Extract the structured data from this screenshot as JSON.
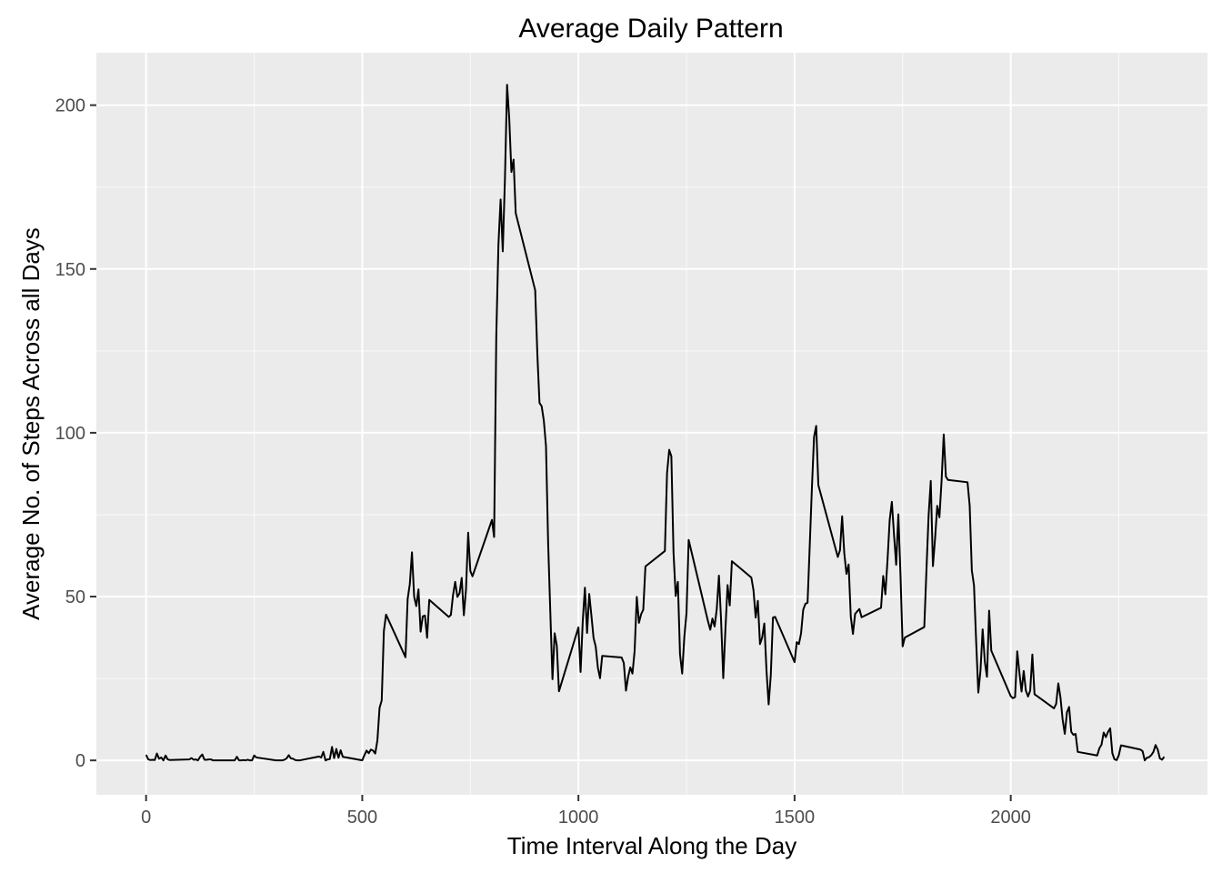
{
  "chart_data": {
    "type": "line",
    "title": "Average Daily Pattern",
    "xlabel": "Time Interval Along the Day",
    "ylabel": "Average No. of Steps Across all Days",
    "xlim": [
      -115,
      2455
    ],
    "ylim": [
      -10.5,
      216
    ],
    "x_ticks": [
      0,
      500,
      1000,
      1500,
      2000
    ],
    "y_ticks": [
      0,
      50,
      100,
      150,
      200
    ],
    "grid": true,
    "legend": "none",
    "colors": {
      "panel": "#ebebeb",
      "line": "#000000",
      "grid": "#ffffff",
      "tick_text": "#4d4d4d"
    },
    "points": [
      [
        0,
        1.7
      ],
      [
        5,
        0.3
      ],
      [
        10,
        0.1
      ],
      [
        15,
        0.2
      ],
      [
        20,
        0.1
      ],
      [
        25,
        2.1
      ],
      [
        30,
        0.5
      ],
      [
        35,
        0.9
      ],
      [
        40,
        0
      ],
      [
        45,
        1.5
      ],
      [
        50,
        0.3
      ],
      [
        55,
        0.1
      ],
      [
        100,
        0.3
      ],
      [
        105,
        0.7
      ],
      [
        110,
        0.2
      ],
      [
        115,
        0.3
      ],
      [
        120,
        0
      ],
      [
        125,
        1.1
      ],
      [
        130,
        1.8
      ],
      [
        135,
        0.2
      ],
      [
        140,
        0.2
      ],
      [
        145,
        0.3
      ],
      [
        150,
        0.3
      ],
      [
        155,
        0
      ],
      [
        200,
        0
      ],
      [
        205,
        0
      ],
      [
        210,
        1.1
      ],
      [
        215,
        0
      ],
      [
        220,
        0
      ],
      [
        225,
        0.1
      ],
      [
        230,
        0
      ],
      [
        235,
        0.2
      ],
      [
        240,
        0
      ],
      [
        245,
        0
      ],
      [
        250,
        1.5
      ],
      [
        255,
        0.9
      ],
      [
        300,
        0
      ],
      [
        305,
        0
      ],
      [
        310,
        0
      ],
      [
        315,
        0
      ],
      [
        320,
        0.2
      ],
      [
        325,
        0.6
      ],
      [
        330,
        1.6
      ],
      [
        335,
        0.6
      ],
      [
        340,
        0.5
      ],
      [
        345,
        0.1
      ],
      [
        350,
        0
      ],
      [
        355,
        0
      ],
      [
        400,
        1.2
      ],
      [
        405,
        0.9
      ],
      [
        410,
        2.6
      ],
      [
        415,
        0
      ],
      [
        420,
        0.3
      ],
      [
        425,
        0.4
      ],
      [
        430,
        4.1
      ],
      [
        435,
        0.7
      ],
      [
        440,
        3.5
      ],
      [
        445,
        0.8
      ],
      [
        450,
        3.1
      ],
      [
        455,
        1.1
      ],
      [
        500,
        0
      ],
      [
        505,
        1.6
      ],
      [
        510,
        3
      ],
      [
        515,
        2.2
      ],
      [
        520,
        3.3
      ],
      [
        525,
        3
      ],
      [
        530,
        2.1
      ],
      [
        535,
        6.1
      ],
      [
        540,
        16
      ],
      [
        545,
        18.3
      ],
      [
        550,
        39.5
      ],
      [
        555,
        44.5
      ],
      [
        600,
        31.5
      ],
      [
        605,
        49.3
      ],
      [
        610,
        53.8
      ],
      [
        615,
        63.5
      ],
      [
        620,
        50
      ],
      [
        625,
        47.1
      ],
      [
        630,
        52.2
      ],
      [
        635,
        39.3
      ],
      [
        640,
        44
      ],
      [
        645,
        44.2
      ],
      [
        650,
        37.4
      ],
      [
        655,
        49
      ],
      [
        700,
        43.8
      ],
      [
        705,
        44.4
      ],
      [
        710,
        50.5
      ],
      [
        715,
        54.5
      ],
      [
        720,
        49.9
      ],
      [
        725,
        51
      ],
      [
        730,
        55.7
      ],
      [
        735,
        44.3
      ],
      [
        740,
        52.3
      ],
      [
        745,
        69.5
      ],
      [
        750,
        57.8
      ],
      [
        755,
        56.2
      ],
      [
        800,
        73.4
      ],
      [
        805,
        68.2
      ],
      [
        810,
        129.4
      ],
      [
        815,
        157.5
      ],
      [
        820,
        171.2
      ],
      [
        825,
        155.4
      ],
      [
        830,
        177.3
      ],
      [
        835,
        206.2
      ],
      [
        840,
        195.9
      ],
      [
        845,
        179.6
      ],
      [
        850,
        183.4
      ],
      [
        855,
        167
      ],
      [
        900,
        143.5
      ],
      [
        905,
        124
      ],
      [
        910,
        109.1
      ],
      [
        915,
        108.1
      ],
      [
        920,
        103.7
      ],
      [
        925,
        95.9
      ],
      [
        930,
        66.2
      ],
      [
        935,
        45.2
      ],
      [
        940,
        24.8
      ],
      [
        945,
        38.8
      ],
      [
        950,
        35
      ],
      [
        955,
        21.1
      ],
      [
        1000,
        40.6
      ],
      [
        1005,
        27
      ],
      [
        1010,
        42.4
      ],
      [
        1015,
        52.7
      ],
      [
        1020,
        38.9
      ],
      [
        1025,
        50.8
      ],
      [
        1030,
        44.3
      ],
      [
        1035,
        37.4
      ],
      [
        1040,
        34.7
      ],
      [
        1045,
        28.3
      ],
      [
        1050,
        25.1
      ],
      [
        1055,
        31.9
      ],
      [
        1100,
        31.4
      ],
      [
        1105,
        29.7
      ],
      [
        1110,
        21.3
      ],
      [
        1115,
        25.5
      ],
      [
        1120,
        28.4
      ],
      [
        1125,
        26.5
      ],
      [
        1130,
        33.4
      ],
      [
        1135,
        49.9
      ],
      [
        1140,
        42
      ],
      [
        1145,
        44.6
      ],
      [
        1150,
        46
      ],
      [
        1155,
        59.2
      ],
      [
        1200,
        63.9
      ],
      [
        1205,
        87.7
      ],
      [
        1210,
        94.8
      ],
      [
        1215,
        92.8
      ],
      [
        1220,
        63.4
      ],
      [
        1225,
        50.2
      ],
      [
        1230,
        54.5
      ],
      [
        1235,
        32.4
      ],
      [
        1240,
        26.5
      ],
      [
        1245,
        37.7
      ],
      [
        1250,
        45
      ],
      [
        1255,
        67.3
      ],
      [
        1300,
        42.3
      ],
      [
        1305,
        39.9
      ],
      [
        1310,
        43.3
      ],
      [
        1315,
        40.9
      ],
      [
        1320,
        46.2
      ],
      [
        1325,
        56.4
      ],
      [
        1330,
        42.8
      ],
      [
        1335,
        25.1
      ],
      [
        1340,
        39.9
      ],
      [
        1345,
        53.5
      ],
      [
        1350,
        47.3
      ],
      [
        1355,
        60.8
      ],
      [
        1400,
        55.8
      ],
      [
        1405,
        51.9
      ],
      [
        1410,
        43.6
      ],
      [
        1415,
        48.7
      ],
      [
        1420,
        35.5
      ],
      [
        1425,
        37.5
      ],
      [
        1430,
        41.8
      ],
      [
        1435,
        27.5
      ],
      [
        1440,
        17.1
      ],
      [
        1445,
        26.1
      ],
      [
        1450,
        43.6
      ],
      [
        1455,
        43.8
      ],
      [
        1500,
        30
      ],
      [
        1505,
        36.1
      ],
      [
        1510,
        35.5
      ],
      [
        1515,
        38.8
      ],
      [
        1520,
        46
      ],
      [
        1525,
        47.8
      ],
      [
        1530,
        48.1
      ],
      [
        1535,
        65.3
      ],
      [
        1540,
        82.9
      ],
      [
        1545,
        98.7
      ],
      [
        1550,
        102.1
      ],
      [
        1555,
        84
      ],
      [
        1600,
        62.1
      ],
      [
        1605,
        64.1
      ],
      [
        1610,
        74.5
      ],
      [
        1615,
        63.2
      ],
      [
        1620,
        56.9
      ],
      [
        1625,
        59.8
      ],
      [
        1630,
        43.9
      ],
      [
        1635,
        38.6
      ],
      [
        1640,
        44.7
      ],
      [
        1645,
        45.5
      ],
      [
        1650,
        46.2
      ],
      [
        1655,
        43.7
      ],
      [
        1700,
        46.6
      ],
      [
        1705,
        56.3
      ],
      [
        1710,
        50.7
      ],
      [
        1715,
        61.2
      ],
      [
        1720,
        73.4
      ],
      [
        1725,
        78.9
      ],
      [
        1730,
        68.9
      ],
      [
        1735,
        59.7
      ],
      [
        1740,
        75.1
      ],
      [
        1745,
        56.5
      ],
      [
        1750,
        34.8
      ],
      [
        1755,
        37.5
      ],
      [
        1800,
        40.7
      ],
      [
        1805,
        58
      ],
      [
        1810,
        74.7
      ],
      [
        1815,
        85.3
      ],
      [
        1820,
        59.3
      ],
      [
        1825,
        67.8
      ],
      [
        1830,
        77.7
      ],
      [
        1835,
        74.2
      ],
      [
        1840,
        85.3
      ],
      [
        1845,
        99.5
      ],
      [
        1850,
        86.6
      ],
      [
        1855,
        85.6
      ],
      [
        1900,
        84.9
      ],
      [
        1905,
        77.8
      ],
      [
        1910,
        58
      ],
      [
        1915,
        53.4
      ],
      [
        1920,
        36.3
      ],
      [
        1925,
        20.7
      ],
      [
        1930,
        27.4
      ],
      [
        1935,
        40
      ],
      [
        1940,
        30.2
      ],
      [
        1945,
        25.5
      ],
      [
        1950,
        45.7
      ],
      [
        1955,
        33.5
      ],
      [
        2000,
        19.6
      ],
      [
        2005,
        19
      ],
      [
        2010,
        19.3
      ],
      [
        2015,
        33.3
      ],
      [
        2020,
        26.8
      ],
      [
        2025,
        21
      ],
      [
        2030,
        27.3
      ],
      [
        2035,
        21.3
      ],
      [
        2040,
        19.5
      ],
      [
        2045,
        21.3
      ],
      [
        2050,
        32.3
      ],
      [
        2055,
        20.2
      ],
      [
        2100,
        15.9
      ],
      [
        2105,
        17.2
      ],
      [
        2110,
        23.5
      ],
      [
        2115,
        19.2
      ],
      [
        2120,
        12.5
      ],
      [
        2125,
        8.1
      ],
      [
        2130,
        14.7
      ],
      [
        2135,
        16.3
      ],
      [
        2140,
        8.7
      ],
      [
        2145,
        7.8
      ],
      [
        2150,
        8.1
      ],
      [
        2155,
        2.6
      ],
      [
        2200,
        1.5
      ],
      [
        2205,
        3.7
      ],
      [
        2210,
        4.8
      ],
      [
        2215,
        8.5
      ],
      [
        2220,
        7.1
      ],
      [
        2225,
        8.7
      ],
      [
        2230,
        9.8
      ],
      [
        2235,
        2.2
      ],
      [
        2240,
        0.3
      ],
      [
        2245,
        0.1
      ],
      [
        2250,
        1.6
      ],
      [
        2255,
        4.6
      ],
      [
        2300,
        3.3
      ],
      [
        2305,
        2.8
      ],
      [
        2310,
        0
      ],
      [
        2315,
        0.8
      ],
      [
        2320,
        1
      ],
      [
        2325,
        1.6
      ],
      [
        2330,
        2.6
      ],
      [
        2335,
        4.7
      ],
      [
        2340,
        3.3
      ],
      [
        2345,
        0.6
      ],
      [
        2350,
        0.2
      ],
      [
        2355,
        1.1
      ]
    ]
  }
}
